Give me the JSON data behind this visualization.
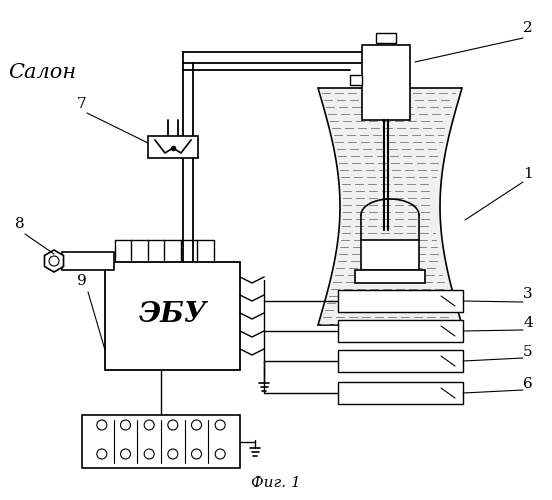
{
  "title": "Фиг. 1",
  "bg": "#ffffff",
  "lc": "#000000",
  "labels": {
    "salon": "Салон",
    "ebu": "ЭБУ",
    "nums": [
      "1",
      "2",
      "3",
      "4",
      "5",
      "6",
      "7",
      "8",
      "9"
    ]
  },
  "fig_w": 5.52,
  "fig_h": 5.0,
  "dpi": 100
}
